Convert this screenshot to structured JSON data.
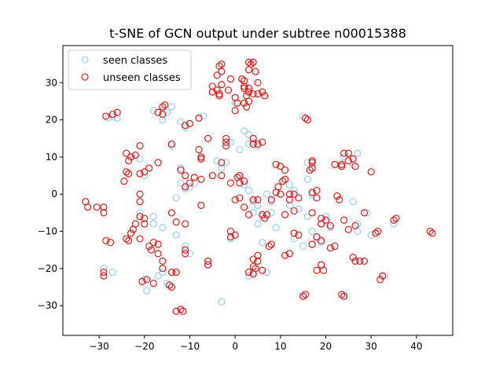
{
  "chart_data": {
    "type": "scatter",
    "title": "t-SNE of GCN output under subtree n00015388",
    "xlabel": "",
    "ylabel": "",
    "xlim": [
      -38,
      48
    ],
    "ylim": [
      -38,
      40
    ],
    "xticks": [
      -30,
      -20,
      -10,
      0,
      10,
      20,
      30,
      40
    ],
    "yticks": [
      -30,
      -20,
      -10,
      0,
      10,
      20,
      30
    ],
    "grid": false,
    "legend_position": "top-left",
    "series": [
      {
        "name": "seen classes",
        "color": "#87cefa",
        "marker": "open-circle",
        "points": [
          [
            -29,
            -20
          ],
          [
            -27,
            -21
          ],
          [
            -28,
            20.5
          ],
          [
            -27,
            21
          ],
          [
            -26,
            20.5
          ],
          [
            -19.5,
            -26
          ],
          [
            -20,
            -23
          ],
          [
            -17,
            -22
          ],
          [
            -16,
            -21
          ],
          [
            -15,
            -24
          ],
          [
            -18,
            22.5
          ],
          [
            -16,
            20
          ],
          [
            -14,
            23.5
          ],
          [
            -15,
            22
          ],
          [
            -12,
            19.5
          ],
          [
            -11,
            18
          ],
          [
            -10,
            19
          ],
          [
            -8,
            20.5
          ],
          [
            -7,
            21
          ],
          [
            -14,
            13
          ],
          [
            -21,
            9.5
          ],
          [
            -20,
            5
          ],
          [
            -17,
            8.5
          ],
          [
            -12,
            7
          ],
          [
            -12,
            3
          ],
          [
            -11,
            1.5
          ],
          [
            -10,
            2
          ],
          [
            -9,
            3
          ],
          [
            -13,
            -1
          ],
          [
            -21,
            -5
          ],
          [
            -18,
            -6
          ],
          [
            -18,
            -8
          ],
          [
            -16,
            -9
          ],
          [
            -13,
            -11
          ],
          [
            -11,
            -14
          ],
          [
            -10,
            -16
          ],
          [
            -6,
            -19
          ],
          [
            -3,
            -29
          ],
          [
            -1,
            -10
          ],
          [
            -1,
            -12
          ],
          [
            1,
            12
          ],
          [
            2,
            17
          ],
          [
            3,
            16
          ],
          [
            4,
            14
          ],
          [
            3,
            13.5
          ],
          [
            5,
            13
          ],
          [
            -1,
            14
          ],
          [
            0,
            24.5
          ],
          [
            0,
            26
          ],
          [
            -4,
            9
          ],
          [
            -2,
            8.5
          ],
          [
            -3,
            7
          ],
          [
            1,
            5
          ],
          [
            1,
            3
          ],
          [
            2,
            2.5
          ],
          [
            3,
            1
          ],
          [
            4,
            -2
          ],
          [
            5,
            -3
          ],
          [
            4,
            -5
          ],
          [
            6,
            -6
          ],
          [
            5,
            -8
          ],
          [
            7,
            0
          ],
          [
            8,
            -2
          ],
          [
            8,
            -5
          ],
          [
            9,
            -9
          ],
          [
            6,
            -13
          ],
          [
            7,
            -21
          ],
          [
            4,
            -21
          ],
          [
            3,
            -22
          ],
          [
            12,
            2.5
          ],
          [
            13,
            1
          ],
          [
            12,
            -3
          ],
          [
            14,
            -4
          ],
          [
            13,
            -12
          ],
          [
            15,
            -14
          ],
          [
            15,
            -27
          ],
          [
            15,
            21
          ],
          [
            16,
            8.5
          ],
          [
            16,
            4
          ],
          [
            17,
            0
          ],
          [
            16,
            -6
          ],
          [
            17,
            -10
          ],
          [
            18,
            -12
          ],
          [
            19,
            -8
          ],
          [
            20,
            -6
          ],
          [
            21,
            -9
          ],
          [
            19,
            -13
          ],
          [
            22,
            -14
          ],
          [
            24,
            10
          ],
          [
            27,
            11
          ],
          [
            26,
            8
          ],
          [
            26,
            -2
          ],
          [
            27,
            -8
          ],
          [
            27,
            -10
          ],
          [
            29,
            -5
          ],
          [
            30,
            -11
          ],
          [
            33,
            -22
          ],
          [
            35,
            -8
          ],
          [
            24,
            -27
          ]
        ]
      },
      {
        "name": "unseen classes",
        "color": "#ff0000",
        "marker": "open-circle",
        "points": [
          [
            -33,
            -2
          ],
          [
            -32.5,
            -3.5
          ],
          [
            -30.5,
            -3.5
          ],
          [
            -29,
            -3.5
          ],
          [
            -29,
            -5
          ],
          [
            -28.5,
            -12.5
          ],
          [
            -27.5,
            -13
          ],
          [
            -28.5,
            21
          ],
          [
            -27,
            21.5
          ],
          [
            -26,
            22
          ],
          [
            -29,
            -21
          ],
          [
            -29,
            -22
          ],
          [
            -24,
            11
          ],
          [
            -23,
            10
          ],
          [
            -23.5,
            9
          ],
          [
            -22,
            10.5
          ],
          [
            -24,
            6
          ],
          [
            -23.5,
            5.5
          ],
          [
            -24.5,
            3.5
          ],
          [
            -21,
            13
          ],
          [
            -21,
            5.5
          ],
          [
            -20,
            6
          ],
          [
            -19,
            7
          ],
          [
            -17,
            8.5
          ],
          [
            -21,
            0
          ],
          [
            -21,
            -2
          ],
          [
            -21,
            -6
          ],
          [
            -20,
            -6.5
          ],
          [
            -20,
            -8
          ],
          [
            -22,
            -8
          ],
          [
            -22.5,
            -9.5
          ],
          [
            -23,
            -10.5
          ],
          [
            -24,
            -12
          ],
          [
            -23.5,
            -12.5
          ],
          [
            -21,
            -12
          ],
          [
            -19,
            -14
          ],
          [
            -18,
            -13
          ],
          [
            -17,
            -13.5
          ],
          [
            -18.5,
            -15
          ],
          [
            -17,
            -16
          ],
          [
            -16,
            -18
          ],
          [
            -16,
            -20
          ],
          [
            -14,
            -21
          ],
          [
            -13,
            -21
          ],
          [
            -19.5,
            -23
          ],
          [
            -20.5,
            -23.5
          ],
          [
            -18,
            -24
          ],
          [
            -14.5,
            -24.5
          ],
          [
            -14,
            -25
          ],
          [
            -12,
            -31
          ],
          [
            -13,
            -31.5
          ],
          [
            -11.5,
            -31.5
          ],
          [
            -17,
            22
          ],
          [
            -16,
            21.5
          ],
          [
            -16,
            23.5
          ],
          [
            -15.5,
            24
          ],
          [
            -11,
            18.5
          ],
          [
            -10,
            19
          ],
          [
            -8,
            20.5
          ],
          [
            -14,
            13.5
          ],
          [
            -12,
            6.5
          ],
          [
            -11,
            5
          ],
          [
            -10,
            3
          ],
          [
            -9,
            4.5
          ],
          [
            -11,
            2
          ],
          [
            -13,
            -7.5
          ],
          [
            -14,
            -5
          ],
          [
            -11,
            -8
          ],
          [
            -11,
            -15
          ],
          [
            -11,
            -16
          ],
          [
            -6,
            -18
          ],
          [
            -6,
            -19
          ],
          [
            -7.5,
            -3
          ],
          [
            -7.5,
            4
          ],
          [
            -7.5,
            10
          ],
          [
            -7.5,
            9.5
          ],
          [
            -8,
            12
          ],
          [
            -6,
            15
          ],
          [
            -5,
            5
          ],
          [
            -3,
            5
          ],
          [
            -3,
            8.5
          ],
          [
            -2,
            13
          ],
          [
            -2,
            14
          ],
          [
            -2,
            15
          ],
          [
            -4,
            28
          ],
          [
            -5,
            27.5
          ],
          [
            -3.5,
            26.5
          ],
          [
            -3,
            29.5
          ],
          [
            -5,
            29
          ],
          [
            -4,
            32
          ],
          [
            -3,
            33
          ],
          [
            -3.5,
            34.5
          ],
          [
            -3,
            35
          ],
          [
            -1,
            31
          ],
          [
            -1.5,
            28
          ],
          [
            -3.5,
            27
          ],
          [
            0,
            26
          ],
          [
            0.5,
            24.5
          ],
          [
            0,
            22.5
          ],
          [
            2,
            28.5
          ],
          [
            2,
            29
          ],
          [
            3,
            28.5
          ],
          [
            2.5,
            26.5
          ],
          [
            3,
            27.5
          ],
          [
            4,
            27
          ],
          [
            5,
            27
          ],
          [
            6,
            27.5
          ],
          [
            6.5,
            26.5
          ],
          [
            3,
            25
          ],
          [
            2,
            24.5
          ],
          [
            2.5,
            23.5
          ],
          [
            1.5,
            31
          ],
          [
            2,
            30.5
          ],
          [
            3,
            35.5
          ],
          [
            3.5,
            35
          ],
          [
            4,
            35.5
          ],
          [
            3,
            33.5
          ],
          [
            4.5,
            33
          ],
          [
            5,
            30
          ],
          [
            4,
            15
          ],
          [
            4,
            13.5
          ],
          [
            5,
            13.5
          ],
          [
            6,
            14
          ],
          [
            0.5,
            4.5
          ],
          [
            1,
            5
          ],
          [
            1,
            3
          ],
          [
            2,
            3.5
          ],
          [
            -1,
            3
          ],
          [
            0,
            -1.5
          ],
          [
            1,
            -1
          ],
          [
            2,
            -3.5
          ],
          [
            3,
            -5.5
          ],
          [
            4,
            -1.5
          ],
          [
            5,
            -1.5
          ],
          [
            6,
            -5.5
          ],
          [
            6.5,
            -6.5
          ],
          [
            7,
            -5.5
          ],
          [
            8,
            -1.5
          ],
          [
            9,
            0.5
          ],
          [
            10,
            0
          ],
          [
            9,
            8
          ],
          [
            10,
            7.5
          ],
          [
            11,
            6.5
          ],
          [
            9.5,
            2
          ],
          [
            10.5,
            3.5
          ],
          [
            11,
            4
          ],
          [
            12,
            0
          ],
          [
            12,
            -1.5
          ],
          [
            13,
            0
          ],
          [
            14,
            -1
          ],
          [
            13,
            -4.5
          ],
          [
            11,
            -5.5
          ],
          [
            13,
            -10.5
          ],
          [
            14,
            -11
          ],
          [
            12,
            -16
          ],
          [
            11,
            -16.5
          ],
          [
            7.5,
            -14
          ],
          [
            8,
            -13.5
          ],
          [
            5,
            -16.5
          ],
          [
            4,
            -17.5
          ],
          [
            5,
            -18
          ],
          [
            4,
            -19.5
          ],
          [
            3,
            -21
          ],
          [
            4,
            -21.5
          ],
          [
            6,
            -20.5
          ],
          [
            4.5,
            -20
          ],
          [
            -1,
            -10
          ],
          [
            -1,
            -11.5
          ],
          [
            0,
            -11
          ],
          [
            15.5,
            20.5
          ],
          [
            16,
            20
          ],
          [
            17,
            9
          ],
          [
            17,
            8.5
          ],
          [
            17,
            7
          ],
          [
            16.5,
            6.5
          ],
          [
            17,
            0.5
          ],
          [
            18,
            1
          ],
          [
            18,
            -1
          ],
          [
            17,
            -5
          ],
          [
            19,
            -6.5
          ],
          [
            19,
            -8
          ],
          [
            20,
            -7
          ],
          [
            21,
            -8.5
          ],
          [
            17,
            -13.5
          ],
          [
            18,
            -11.5
          ],
          [
            19,
            -12.5
          ],
          [
            21,
            -14.5
          ],
          [
            22,
            -14
          ],
          [
            18,
            -20.5
          ],
          [
            19,
            -19
          ],
          [
            19.5,
            -20.5
          ],
          [
            15,
            -27.5
          ],
          [
            15.5,
            -27
          ],
          [
            24,
            -27.5
          ],
          [
            23.5,
            -27
          ],
          [
            22,
            8
          ],
          [
            24,
            11
          ],
          [
            25,
            11
          ],
          [
            25,
            9
          ],
          [
            26,
            9.5
          ],
          [
            26.5,
            7.5
          ],
          [
            23.5,
            8
          ],
          [
            23.5,
            7.5
          ],
          [
            22.5,
            -0.5
          ],
          [
            23,
            -1.5
          ],
          [
            24,
            -7
          ],
          [
            25,
            -9.5
          ],
          [
            26.5,
            -8.5
          ],
          [
            26,
            -17
          ],
          [
            26.5,
            -18
          ],
          [
            27.5,
            -18
          ],
          [
            28.5,
            -18
          ],
          [
            28.5,
            -5
          ],
          [
            30,
            6
          ],
          [
            31.5,
            -10
          ],
          [
            31,
            -10.5
          ],
          [
            32,
            -23
          ],
          [
            32.5,
            -22
          ],
          [
            35,
            -7
          ],
          [
            35.5,
            -6.5
          ],
          [
            43,
            -10
          ],
          [
            43.5,
            -10.5
          ]
        ]
      }
    ]
  }
}
